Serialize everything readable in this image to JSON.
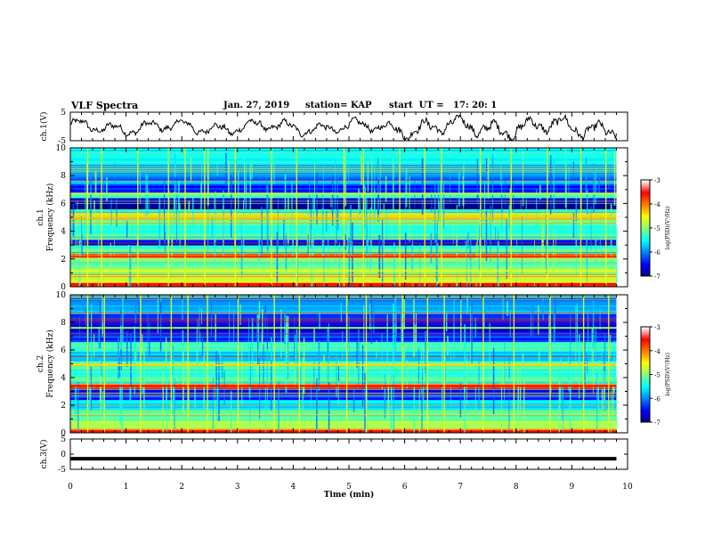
{
  "header": {
    "title": "VLF Spectra",
    "date": "Jan. 27, 2019",
    "station": "station= KAP",
    "start": "start  UT =   17: 20: 1"
  },
  "chart_data": [
    {
      "type": "line",
      "name": "ch1-waveform",
      "ylabel": "ch.1(V)",
      "xlim": [
        0,
        10
      ],
      "ylim": [
        -5,
        5
      ],
      "yticks": [
        "5",
        "-5"
      ],
      "note_values": "waveform oscillating roughly between -4 and +3.5 V, ends near 9.8 min"
    },
    {
      "type": "heatmap",
      "name": "ch1-spectrogram",
      "ylabel": "ch.1\nFrequency  (kHz)",
      "xlim": [
        0,
        9.8
      ],
      "ylim": [
        0,
        10
      ],
      "yticks": [
        "0",
        "2",
        "4",
        "6",
        "8",
        "10"
      ],
      "colorbar": {
        "label": "log(PSD)(V²/Hz)",
        "range": [
          -7,
          -3
        ],
        "ticks": [
          "-3",
          "-4",
          "-5",
          "-6",
          "-7"
        ]
      },
      "bands": [
        {
          "f": [
            0.0,
            0.3
          ],
          "level": -3.6
        },
        {
          "f": [
            0.3,
            0.7
          ],
          "level": -4.6
        },
        {
          "f": [
            0.7,
            1.3
          ],
          "level": -4.9
        },
        {
          "f": [
            1.3,
            1.8
          ],
          "level": -5.1
        },
        {
          "f": [
            1.8,
            2.1
          ],
          "level": -4.8
        },
        {
          "f": [
            2.1,
            2.4
          ],
          "level": -3.8
        },
        {
          "f": [
            2.4,
            3.0
          ],
          "level": -5.2
        },
        {
          "f": [
            3.0,
            3.4
          ],
          "level": -6.6
        },
        {
          "f": [
            3.4,
            4.9
          ],
          "level": -5.3
        },
        {
          "f": [
            4.9,
            5.3
          ],
          "level": -4.5
        },
        {
          "f": [
            5.3,
            5.6
          ],
          "level": -5.4
        },
        {
          "f": [
            5.6,
            6.4
          ],
          "level": -6.8
        },
        {
          "f": [
            6.4,
            6.7
          ],
          "level": -5.0
        },
        {
          "f": [
            6.7,
            7.4
          ],
          "level": -6.4
        },
        {
          "f": [
            7.4,
            8.8
          ],
          "level": -5.9
        },
        {
          "f": [
            8.8,
            10.0
          ],
          "level": -5.6
        }
      ],
      "lines": [
        {
          "f": 2.2,
          "level": -3.5
        },
        {
          "f": 4.9,
          "level": -4.2
        },
        {
          "f": 6.7,
          "level": -4.7
        }
      ],
      "bursts_min": [
        0.3,
        0.55,
        1.2,
        1.75,
        2.05,
        2.4,
        2.95,
        3.6,
        4.05,
        4.9,
        5.25,
        5.9,
        6.35,
        6.65,
        7.35,
        7.9,
        8.55,
        9.15,
        9.6
      ]
    },
    {
      "type": "heatmap",
      "name": "ch2-spectrogram",
      "ylabel": "ch.2\nFrequency  (kHz)",
      "xlim": [
        0,
        9.8
      ],
      "ylim": [
        0,
        10
      ],
      "yticks": [
        "0",
        "2",
        "4",
        "6",
        "8",
        "10"
      ],
      "colorbar": {
        "label": "log(PSD)(V²/Hz)",
        "range": [
          -7,
          -3
        ],
        "ticks": [
          "-3",
          "-4",
          "-5",
          "-6",
          "-7"
        ]
      },
      "bands": [
        {
          "f": [
            0.0,
            0.3
          ],
          "level": -3.7
        },
        {
          "f": [
            0.3,
            1.0
          ],
          "level": -5.0
        },
        {
          "f": [
            1.0,
            1.8
          ],
          "level": -5.3
        },
        {
          "f": [
            1.8,
            2.4
          ],
          "level": -5.6
        },
        {
          "f": [
            2.4,
            3.2
          ],
          "level": -6.3
        },
        {
          "f": [
            3.2,
            3.6
          ],
          "level": -3.9
        },
        {
          "f": [
            3.6,
            4.6
          ],
          "level": -5.3
        },
        {
          "f": [
            4.6,
            5.2
          ],
          "level": -5.0
        },
        {
          "f": [
            5.2,
            6.0
          ],
          "level": -5.7
        },
        {
          "f": [
            6.0,
            6.6
          ],
          "level": -5.4
        },
        {
          "f": [
            6.6,
            7.4
          ],
          "level": -6.3
        },
        {
          "f": [
            7.4,
            8.6
          ],
          "level": -6.6
        },
        {
          "f": [
            8.6,
            10.0
          ],
          "level": -6.0
        }
      ],
      "lines": [
        {
          "f": 3.4,
          "level": -3.5
        },
        {
          "f": 4.9,
          "level": -4.4
        },
        {
          "f": 7.6,
          "level": -4.9
        }
      ],
      "bursts_min": [
        0.3,
        0.6,
        1.25,
        1.8,
        2.1,
        2.45,
        3.0,
        3.65,
        4.1,
        4.95,
        5.3,
        5.95,
        6.4,
        6.7,
        7.4,
        7.95,
        8.6,
        9.2,
        9.65
      ]
    },
    {
      "type": "line",
      "name": "ch3-waveform",
      "ylabel": "ch.3(V)",
      "xlim": [
        0,
        10
      ],
      "ylim": [
        -5,
        5
      ],
      "yticks": [
        "5",
        "0",
        "-5"
      ],
      "values_constant": -1.5
    }
  ],
  "xaxis": {
    "label": "Time  (min)",
    "ticks": [
      "0",
      "1",
      "2",
      "3",
      "4",
      "5",
      "6",
      "7",
      "8",
      "9",
      "10"
    ]
  },
  "colors": {
    "colormap": [
      "#00007f",
      "#0000ff",
      "#007fff",
      "#00ffff",
      "#7fff7f",
      "#ffff00",
      "#ff7f00",
      "#ff0000",
      "#ffffff"
    ],
    "line": "#000000"
  }
}
